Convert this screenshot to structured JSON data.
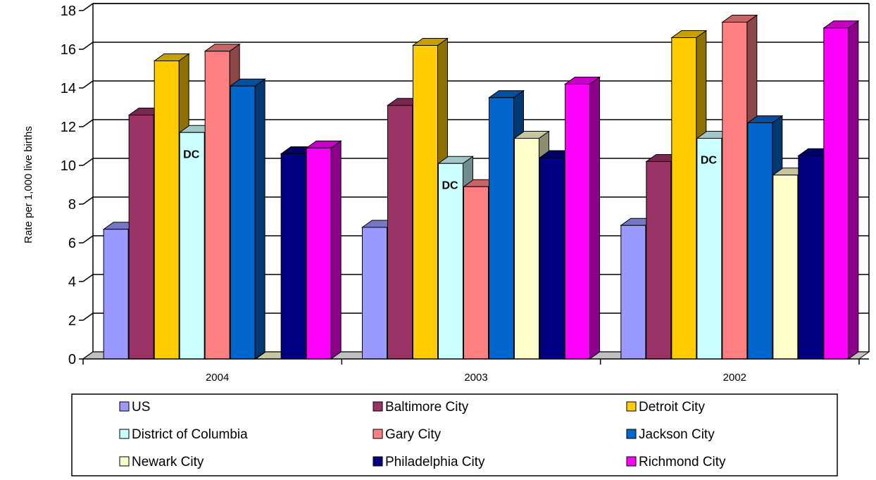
{
  "chart_data": {
    "type": "bar",
    "ylabel": "Rate per 1,000 live births",
    "xlabel": "",
    "ylim": [
      0,
      18
    ],
    "yticks": [
      "0",
      "2",
      "4",
      "6",
      "8",
      "10",
      "12",
      "14",
      "16",
      "18"
    ],
    "categories": [
      "2004",
      "2003",
      "2002"
    ],
    "grid": true,
    "legend_position": "bottom",
    "series": [
      {
        "name": "US",
        "values": [
          6.7,
          6.8,
          6.9
        ],
        "color": "#9999FF"
      },
      {
        "name": "Baltimore City",
        "values": [
          12.6,
          13.1,
          10.2
        ],
        "color": "#993366"
      },
      {
        "name": "Detroit City",
        "values": [
          15.4,
          16.2,
          16.6
        ],
        "color": "#FFCC00"
      },
      {
        "name": "District of Columbia",
        "values": [
          11.7,
          10.1,
          11.4
        ],
        "color": "#CCFFFF"
      },
      {
        "name": "Gary City",
        "values": [
          15.9,
          8.9,
          17.4
        ],
        "color": "#FF8080"
      },
      {
        "name": "Jackson City",
        "values": [
          14.1,
          13.5,
          12.2
        ],
        "color": "#0066CC"
      },
      {
        "name": "Newark City",
        "values": [
          0,
          11.4,
          9.5
        ],
        "color": "#FFFFCC"
      },
      {
        "name": "Philadelphia City",
        "values": [
          10.6,
          10.4,
          10.5
        ],
        "color": "#000080"
      },
      {
        "name": "Richmond City",
        "values": [
          10.9,
          14.2,
          17.1
        ],
        "color": "#FF00FF"
      }
    ],
    "annotations": [
      {
        "text": "DC",
        "category": "2004",
        "series": "District of Columbia"
      },
      {
        "text": "DC",
        "category": "2003",
        "series": "District of Columbia"
      },
      {
        "text": "DC",
        "category": "2002",
        "series": "District of Columbia"
      }
    ]
  }
}
